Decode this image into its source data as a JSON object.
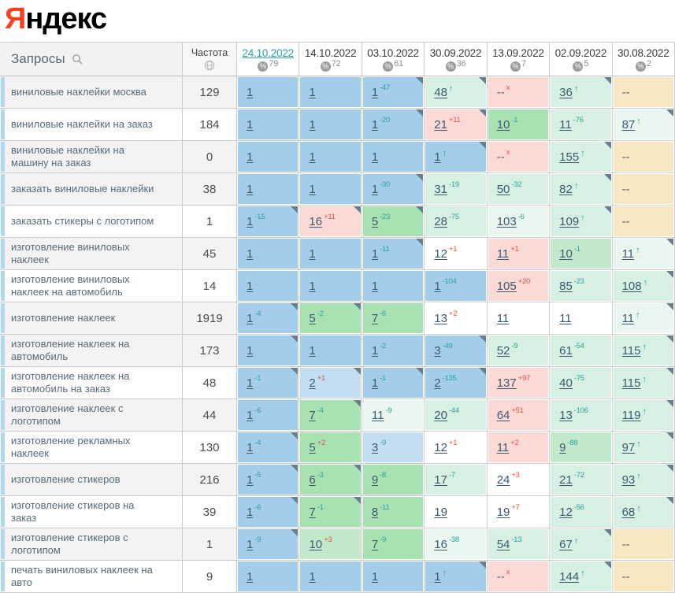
{
  "logo": {
    "letter": "Я",
    "rest": "ндекс"
  },
  "header": {
    "queries_label": "Запросы",
    "frequency_label": "Частота",
    "percent_symbol": "%",
    "dates": [
      {
        "label": "24.10.2022",
        "count": "79",
        "selected": true
      },
      {
        "label": "14.10.2022",
        "count": "72",
        "selected": false
      },
      {
        "label": "03.10.2022",
        "count": "61",
        "selected": false
      },
      {
        "label": "30.09.2022",
        "count": "36",
        "selected": false
      },
      {
        "label": "13.09.2022",
        "count": "7",
        "selected": false
      },
      {
        "label": "02.09.2022",
        "count": "5",
        "selected": false
      },
      {
        "label": "30.08.2022",
        "count": "2",
        "selected": false
      }
    ]
  },
  "palette": {
    "b1": "#a3cdea",
    "b2": "#c3def2",
    "g1": "#a8e2b3",
    "g2": "#c2e9cb",
    "m1": "#d8f0e3",
    "m2": "#eaf7f0",
    "w": "#ffffff",
    "p": "#fbdad6",
    "t": "#f7e7c3",
    "teal": "#2ba49a",
    "red": "#e0514c",
    "corner": "#66808f",
    "stripe": "#b2d7f0",
    "logo_red": "#fc3f1d"
  },
  "rows": [
    {
      "query": "виниловые наклейки москва",
      "frequency": "129",
      "shade": "g",
      "cells": [
        {
          "v": "1",
          "bg": "b1"
        },
        {
          "v": "1",
          "bg": "b1"
        },
        {
          "v": "1",
          "sup": "-47",
          "supType": "neg",
          "bg": "b1",
          "corner": true
        },
        {
          "v": "48",
          "sup": "↑",
          "supType": "up",
          "bg": "m1",
          "corner": true
        },
        {
          "v": "--",
          "sup": "x",
          "supType": "out",
          "bg": "p"
        },
        {
          "v": "36",
          "sup": "↑",
          "supType": "up",
          "bg": "m1",
          "corner": true
        },
        {
          "v": "--",
          "bg": "t"
        }
      ]
    },
    {
      "query": "виниловые наклейки на заказ",
      "frequency": "184",
      "shade": "w",
      "cells": [
        {
          "v": "1",
          "bg": "b1"
        },
        {
          "v": "1",
          "bg": "b1"
        },
        {
          "v": "1",
          "sup": "-20",
          "supType": "neg",
          "bg": "b1",
          "corner": true
        },
        {
          "v": "21",
          "sup": "+11",
          "supType": "pos",
          "bg": "p",
          "corner": true
        },
        {
          "v": "10",
          "sup": "-1",
          "supType": "neg",
          "bg": "g1"
        },
        {
          "v": "11",
          "sup": "-76",
          "supType": "neg",
          "bg": "m1"
        },
        {
          "v": "87",
          "sup": "↑",
          "supType": "up",
          "bg": "m2",
          "corner": true
        }
      ]
    },
    {
      "query": "виниловые наклейки на машину на заказ",
      "frequency": "0",
      "shade": "g",
      "cells": [
        {
          "v": "1",
          "bg": "b1"
        },
        {
          "v": "1",
          "bg": "b1"
        },
        {
          "v": "1",
          "bg": "b1"
        },
        {
          "v": "1",
          "sup": "↑",
          "supType": "up",
          "bg": "b1",
          "corner": true
        },
        {
          "v": "--",
          "sup": "x",
          "supType": "out",
          "bg": "p"
        },
        {
          "v": "155",
          "sup": "↑",
          "supType": "up",
          "bg": "m1",
          "corner": true
        },
        {
          "v": "--",
          "bg": "t"
        }
      ]
    },
    {
      "query": "заказать виниловые наклейки",
      "frequency": "38",
      "shade": "g",
      "cells": [
        {
          "v": "1",
          "bg": "b1"
        },
        {
          "v": "1",
          "bg": "b1"
        },
        {
          "v": "1",
          "sup": "-30",
          "supType": "neg",
          "bg": "b1",
          "corner": true
        },
        {
          "v": "31",
          "sup": "-19",
          "supType": "neg",
          "bg": "m1"
        },
        {
          "v": "50",
          "sup": "-32",
          "supType": "neg",
          "bg": "m1"
        },
        {
          "v": "82",
          "sup": "↑",
          "supType": "up",
          "bg": "m1",
          "corner": true
        },
        {
          "v": "--",
          "bg": "t"
        }
      ]
    },
    {
      "query": "заказать стикеры с логотипом",
      "frequency": "1",
      "shade": "w",
      "cells": [
        {
          "v": "1",
          "sup": "-15",
          "supType": "neg",
          "bg": "b1",
          "corner": true
        },
        {
          "v": "16",
          "sup": "+11",
          "supType": "pos",
          "bg": "p",
          "corner": true
        },
        {
          "v": "5",
          "sup": "-23",
          "supType": "neg",
          "bg": "g1",
          "corner": true
        },
        {
          "v": "28",
          "sup": "-75",
          "supType": "neg",
          "bg": "m1"
        },
        {
          "v": "103",
          "sup": "-6",
          "supType": "neg",
          "bg": "m2"
        },
        {
          "v": "109",
          "sup": "↑",
          "supType": "up",
          "bg": "m1",
          "corner": true
        },
        {
          "v": "--",
          "bg": "t"
        }
      ]
    },
    {
      "query": "изготовление виниловых наклеек",
      "frequency": "45",
      "shade": "g",
      "cells": [
        {
          "v": "1",
          "bg": "b1"
        },
        {
          "v": "1",
          "bg": "b1"
        },
        {
          "v": "1",
          "sup": "-11",
          "supType": "neg",
          "bg": "b1",
          "corner": true
        },
        {
          "v": "12",
          "sup": "+1",
          "supType": "pos",
          "bg": "w"
        },
        {
          "v": "11",
          "sup": "+1",
          "supType": "pos",
          "bg": "p"
        },
        {
          "v": "10",
          "sup": "-1",
          "supType": "neg",
          "bg": "g2"
        },
        {
          "v": "11",
          "sup": "↑",
          "supType": "up",
          "bg": "m2",
          "corner": true
        }
      ]
    },
    {
      "query": "изготовление виниловых наклеек на автомобиль",
      "frequency": "14",
      "shade": "w",
      "cells": [
        {
          "v": "1",
          "bg": "b1"
        },
        {
          "v": "1",
          "bg": "b1"
        },
        {
          "v": "1",
          "bg": "b1"
        },
        {
          "v": "1",
          "sup": "-104",
          "supType": "neg",
          "bg": "b1"
        },
        {
          "v": "105",
          "sup": "+20",
          "supType": "pos",
          "bg": "p"
        },
        {
          "v": "85",
          "sup": "-23",
          "supType": "neg",
          "bg": "m1"
        },
        {
          "v": "108",
          "sup": "↑",
          "supType": "up",
          "bg": "m1",
          "corner": true
        }
      ]
    },
    {
      "query": "изготовление наклеек",
      "frequency": "1919",
      "shade": "g",
      "cells": [
        {
          "v": "1",
          "sup": "-4",
          "supType": "neg",
          "bg": "b1",
          "corner": true
        },
        {
          "v": "5",
          "sup": "-2",
          "supType": "neg",
          "bg": "g1",
          "corner": true
        },
        {
          "v": "7",
          "sup": "-6",
          "supType": "neg",
          "bg": "g1"
        },
        {
          "v": "13",
          "sup": "+2",
          "supType": "pos",
          "bg": "w"
        },
        {
          "v": "11",
          "bg": "w"
        },
        {
          "v": "11",
          "bg": "w"
        },
        {
          "v": "11",
          "sup": "↑",
          "supType": "up",
          "bg": "m2",
          "corner": true
        }
      ]
    },
    {
      "query": "изготовление наклеек на автомобиль",
      "frequency": "173",
      "shade": "g",
      "cells": [
        {
          "v": "1",
          "bg": "b1",
          "corner": true
        },
        {
          "v": "1",
          "bg": "b1"
        },
        {
          "v": "1",
          "sup": "-2",
          "supType": "neg",
          "bg": "b1"
        },
        {
          "v": "3",
          "sup": "-49",
          "supType": "neg",
          "bg": "b1",
          "corner": true
        },
        {
          "v": "52",
          "sup": "-9",
          "supType": "neg",
          "bg": "m1"
        },
        {
          "v": "61",
          "sup": "-54",
          "supType": "neg",
          "bg": "m1"
        },
        {
          "v": "115",
          "sup": "↑",
          "supType": "up",
          "bg": "m1",
          "corner": true
        }
      ]
    },
    {
      "query": "изготовление наклеек на автомобиль на заказ",
      "frequency": "48",
      "shade": "w",
      "cells": [
        {
          "v": "1",
          "sup": "-1",
          "supType": "neg",
          "bg": "b1",
          "corner": true
        },
        {
          "v": "2",
          "sup": "+1",
          "supType": "pos",
          "bg": "b2",
          "corner": true
        },
        {
          "v": "1",
          "sup": "-1",
          "supType": "neg",
          "bg": "b1",
          "corner": true
        },
        {
          "v": "2",
          "sup": "-135",
          "supType": "neg",
          "bg": "b1",
          "corner": true
        },
        {
          "v": "137",
          "sup": "+97",
          "supType": "pos",
          "bg": "p"
        },
        {
          "v": "40",
          "sup": "-75",
          "supType": "neg",
          "bg": "m1"
        },
        {
          "v": "115",
          "sup": "↑",
          "supType": "up",
          "bg": "m1",
          "corner": true
        }
      ]
    },
    {
      "query": "изготовление наклеек с логотипом",
      "frequency": "44",
      "shade": "g",
      "cells": [
        {
          "v": "1",
          "sup": "-6",
          "supType": "neg",
          "bg": "b1"
        },
        {
          "v": "7",
          "sup": "-4",
          "supType": "neg",
          "bg": "g1",
          "corner": true
        },
        {
          "v": "11",
          "sup": "-9",
          "supType": "neg",
          "bg": "m2"
        },
        {
          "v": "20",
          "sup": "-44",
          "supType": "neg",
          "bg": "m1"
        },
        {
          "v": "64",
          "sup": "+51",
          "supType": "pos",
          "bg": "p"
        },
        {
          "v": "13",
          "sup": "-106",
          "supType": "neg",
          "bg": "m1"
        },
        {
          "v": "119",
          "sup": "↑",
          "supType": "up",
          "bg": "m1",
          "corner": true
        }
      ]
    },
    {
      "query": "изготовление рекламных наклеек",
      "frequency": "130",
      "shade": "w",
      "cells": [
        {
          "v": "1",
          "sup": "-4",
          "supType": "neg",
          "bg": "b1",
          "corner": true
        },
        {
          "v": "5",
          "sup": "+2",
          "supType": "pos",
          "bg": "g1"
        },
        {
          "v": "3",
          "sup": "-9",
          "supType": "neg",
          "bg": "b2"
        },
        {
          "v": "12",
          "sup": "+1",
          "supType": "pos",
          "bg": "w"
        },
        {
          "v": "11",
          "sup": "+2",
          "supType": "pos",
          "bg": "p"
        },
        {
          "v": "9",
          "sup": "-88",
          "supType": "neg",
          "bg": "g2"
        },
        {
          "v": "97",
          "sup": "↑",
          "supType": "up",
          "bg": "m1",
          "corner": true
        }
      ]
    },
    {
      "query": "изготовление стикеров",
      "frequency": "216",
      "shade": "g",
      "cells": [
        {
          "v": "1",
          "sup": "-5",
          "supType": "neg",
          "bg": "b1",
          "corner": true
        },
        {
          "v": "6",
          "sup": "-3",
          "supType": "neg",
          "bg": "g1",
          "corner": true
        },
        {
          "v": "9",
          "sup": "-8",
          "supType": "neg",
          "bg": "g1"
        },
        {
          "v": "17",
          "sup": "-7",
          "supType": "neg",
          "bg": "m1"
        },
        {
          "v": "24",
          "sup": "+3",
          "supType": "pos",
          "bg": "w"
        },
        {
          "v": "21",
          "sup": "-72",
          "supType": "neg",
          "bg": "m1"
        },
        {
          "v": "93",
          "sup": "↑",
          "supType": "up",
          "bg": "m1",
          "corner": true
        }
      ]
    },
    {
      "query": "изготовление стикеров на заказ",
      "frequency": "39",
      "shade": "w",
      "cells": [
        {
          "v": "1",
          "sup": "-6",
          "supType": "neg",
          "bg": "b1",
          "corner": true
        },
        {
          "v": "7",
          "sup": "-1",
          "supType": "neg",
          "bg": "g1",
          "corner": true
        },
        {
          "v": "8",
          "sup": "-11",
          "supType": "neg",
          "bg": "g1"
        },
        {
          "v": "19",
          "bg": "w"
        },
        {
          "v": "19",
          "sup": "+7",
          "supType": "pos",
          "bg": "w"
        },
        {
          "v": "12",
          "sup": "-56",
          "supType": "neg",
          "bg": "m1"
        },
        {
          "v": "68",
          "sup": "↑",
          "supType": "up",
          "bg": "m1",
          "corner": true
        }
      ]
    },
    {
      "query": "изготовление стикеров с логотипом",
      "frequency": "1",
      "shade": "g",
      "cells": [
        {
          "v": "1",
          "sup": "-9",
          "supType": "neg",
          "bg": "b1",
          "corner": true
        },
        {
          "v": "10",
          "sup": "+3",
          "supType": "pos",
          "bg": "g2"
        },
        {
          "v": "7",
          "sup": "-9",
          "supType": "neg",
          "bg": "g1"
        },
        {
          "v": "16",
          "sup": "-38",
          "supType": "neg",
          "bg": "m2"
        },
        {
          "v": "54",
          "sup": "-13",
          "supType": "neg",
          "bg": "m1"
        },
        {
          "v": "67",
          "sup": "↑",
          "supType": "up",
          "bg": "m1",
          "corner": true
        },
        {
          "v": "--",
          "bg": "t"
        }
      ]
    },
    {
      "query": "печать виниловых наклеек на авто",
      "frequency": "9",
      "shade": "w",
      "cells": [
        {
          "v": "1",
          "bg": "b1"
        },
        {
          "v": "1",
          "bg": "b1"
        },
        {
          "v": "1",
          "bg": "b1"
        },
        {
          "v": "1",
          "sup": "↑",
          "supType": "up",
          "bg": "b1",
          "corner": true
        },
        {
          "v": "--",
          "sup": "x",
          "supType": "out",
          "bg": "p"
        },
        {
          "v": "144",
          "sup": "↑",
          "supType": "up",
          "bg": "m1",
          "corner": true
        },
        {
          "v": "--",
          "bg": "t"
        }
      ]
    }
  ]
}
